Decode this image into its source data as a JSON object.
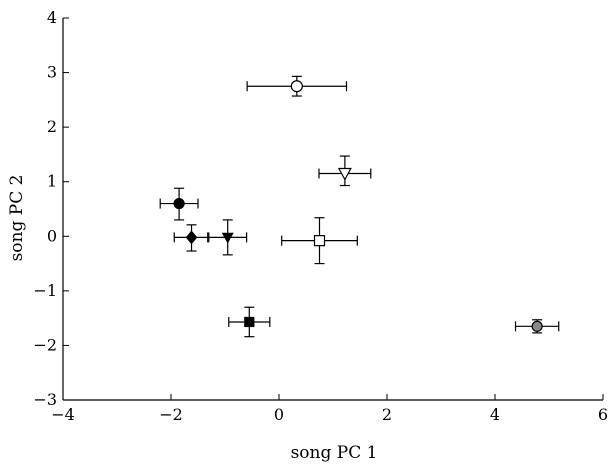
{
  "chart_data": {
    "type": "scatter",
    "title": "",
    "xlabel": "song PC 1",
    "ylabel": "song PC 2",
    "xlim": [
      -4,
      6
    ],
    "ylim": [
      -3,
      4
    ],
    "xticks": [
      -4,
      -2,
      0,
      2,
      4,
      6
    ],
    "yticks": [
      -3,
      -2,
      -1,
      0,
      1,
      2,
      3,
      4
    ],
    "xtick_labels": [
      "−4",
      "−2",
      "0",
      "2",
      "4",
      "6"
    ],
    "ytick_labels": [
      "−3",
      "−2",
      "−1",
      "0",
      "1",
      "2",
      "3",
      "4"
    ],
    "grid": false,
    "legend": "none",
    "points": [
      {
        "marker": "circle-open",
        "x": 0.33,
        "y": 2.75,
        "xerr": [
          0.92,
          0.92
        ],
        "yerr": [
          0.18,
          0.18
        ]
      },
      {
        "marker": "triangle-down-open",
        "x": 1.22,
        "y": 1.15,
        "xerr": [
          0.48,
          0.48
        ],
        "yerr": [
          0.22,
          0.32
        ]
      },
      {
        "marker": "circle-filled",
        "x": -1.85,
        "y": 0.6,
        "xerr": [
          0.35,
          0.35
        ],
        "yerr": [
          0.3,
          0.28
        ]
      },
      {
        "marker": "diamond-filled",
        "x": -1.62,
        "y": -0.02,
        "xerr": [
          0.32,
          0.3
        ],
        "yerr": [
          0.25,
          0.23
        ]
      },
      {
        "marker": "triangle-down-filled",
        "x": -0.95,
        "y": -0.02,
        "xerr": [
          0.35,
          0.35
        ],
        "yerr": [
          0.32,
          0.32
        ]
      },
      {
        "marker": "square-open",
        "x": 0.75,
        "y": -0.08,
        "xerr": [
          0.7,
          0.7
        ],
        "yerr": [
          0.42,
          0.42
        ]
      },
      {
        "marker": "square-filled",
        "x": -0.55,
        "y": -1.57,
        "xerr": [
          0.38,
          0.38
        ],
        "yerr": [
          0.27,
          0.27
        ]
      },
      {
        "marker": "circle-gray",
        "x": 4.78,
        "y": -1.65,
        "xerr": [
          0.4,
          0.4
        ],
        "yerr": [
          0.12,
          0.12
        ]
      }
    ],
    "colors": {
      "axis": "#000000",
      "filled": "#000000",
      "open": "#ffffff",
      "gray": "#888888"
    }
  }
}
